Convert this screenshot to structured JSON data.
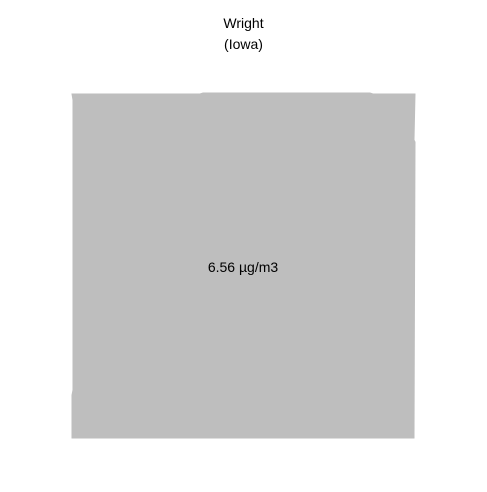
{
  "map": {
    "title_line1": "Wright",
    "title_line2": "(Iowa)",
    "value_label": "6.56 µg/m3",
    "fill_color": "#bebebe"
  }
}
